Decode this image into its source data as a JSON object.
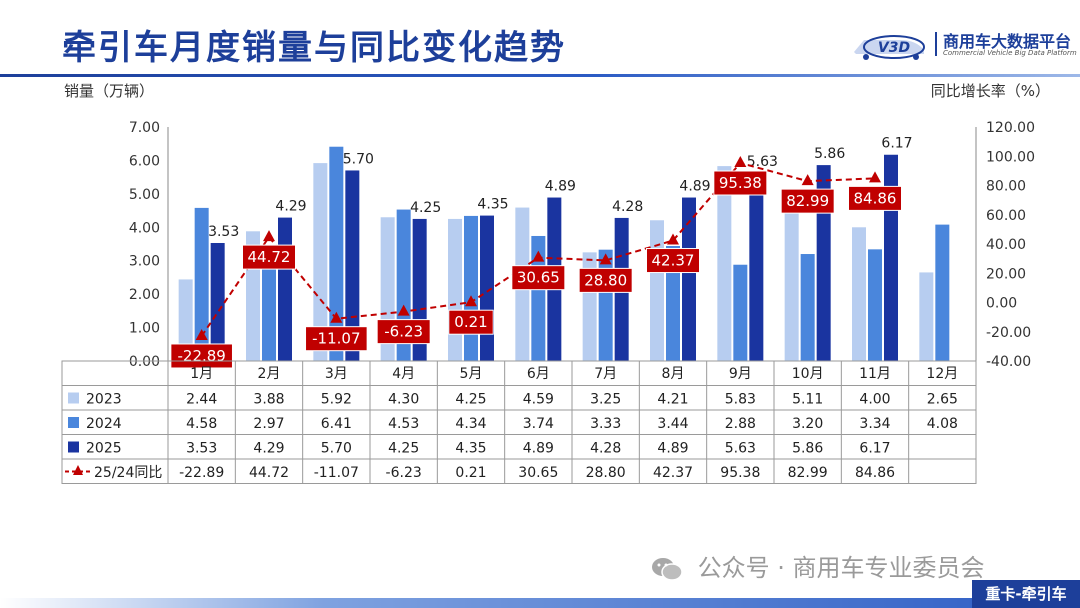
{
  "header": {
    "title": "牵引车月度销量与同比变化趋势",
    "logo_mark": "V3D",
    "logo_cn": "商用车大数据平台",
    "logo_en": "Commercial Vehicle Big Data Platform"
  },
  "footer": {
    "watermark": "公众号 · 商用车专业委员会",
    "tag": "重卡-牵引车"
  },
  "colors": {
    "s2023": "#b7cdf0",
    "s2024": "#4a86dc",
    "s2025": "#1a34a0",
    "yoy": "#c00000",
    "title": "#1d3f9a"
  },
  "chart_data": {
    "type": "bar",
    "categories": [
      "1月",
      "2月",
      "3月",
      "4月",
      "5月",
      "6月",
      "7月",
      "8月",
      "9月",
      "10月",
      "11月",
      "12月"
    ],
    "ylabel": "销量（万辆）",
    "y2label": "同比增长率（%）",
    "ylim": [
      0,
      7
    ],
    "yticks": [
      "0.00",
      "1.00",
      "2.00",
      "3.00",
      "4.00",
      "5.00",
      "6.00",
      "7.00"
    ],
    "y2lim": [
      -40,
      120
    ],
    "y2ticks": [
      "-40.00",
      "-20.00",
      "0.00",
      "20.00",
      "40.00",
      "60.00",
      "80.00",
      "100.00",
      "120.00"
    ],
    "series": [
      {
        "name": "2023",
        "type": "bar",
        "values": [
          2.44,
          3.88,
          5.92,
          4.3,
          4.25,
          4.59,
          3.25,
          4.21,
          5.83,
          5.11,
          4.0,
          2.65
        ],
        "table": [
          "2.44",
          "3.88",
          "5.92",
          "4.30",
          "4.25",
          "4.59",
          "3.25",
          "4.21",
          "5.83",
          "5.11",
          "4.00",
          "2.65"
        ]
      },
      {
        "name": "2024",
        "type": "bar",
        "values": [
          4.58,
          2.97,
          6.41,
          4.53,
          4.34,
          3.74,
          3.33,
          3.44,
          2.88,
          3.2,
          3.34,
          4.08
        ],
        "table": [
          "4.58",
          "2.97",
          "6.41",
          "4.53",
          "4.34",
          "3.74",
          "3.33",
          "3.44",
          "2.88",
          "3.20",
          "3.34",
          "4.08"
        ]
      },
      {
        "name": "2025",
        "type": "bar",
        "values": [
          3.53,
          4.29,
          5.7,
          4.25,
          4.35,
          4.89,
          4.28,
          4.89,
          5.63,
          5.86,
          6.17,
          null
        ],
        "table": [
          "3.53",
          "4.29",
          "5.70",
          "4.25",
          "4.35",
          "4.89",
          "4.28",
          "4.89",
          "5.63",
          "5.86",
          "6.17",
          ""
        ]
      },
      {
        "name": "25/24同比",
        "type": "line",
        "axis": "right",
        "values": [
          -22.89,
          44.72,
          -11.07,
          -6.23,
          0.21,
          30.65,
          28.8,
          42.37,
          95.38,
          82.99,
          84.86,
          null
        ],
        "table": [
          "-22.89",
          "44.72",
          "-11.07",
          "-6.23",
          "0.21",
          "30.65",
          "28.80",
          "42.37",
          "95.38",
          "82.99",
          "84.86",
          ""
        ]
      }
    ],
    "bar_labels_2025": [
      "3.53",
      "4.29",
      "5.70",
      "4.25",
      "4.35",
      "4.89",
      "4.28",
      "4.89",
      "5.63",
      "5.86",
      "6.17"
    ],
    "yoy_labels": [
      "-22.89",
      "44.72",
      "-11.07",
      "-6.23",
      "0.21",
      "30.65",
      "28.80",
      "42.37",
      "95.38",
      "82.99",
      "84.86"
    ],
    "legend": "table-rows",
    "grid": false
  }
}
